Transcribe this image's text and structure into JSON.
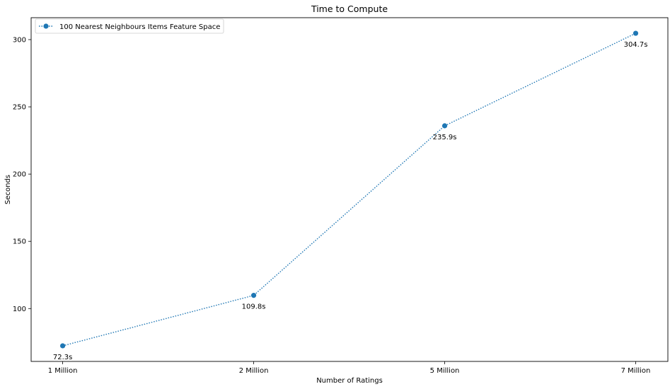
{
  "chart_data": {
    "type": "line",
    "title": "Time to Compute",
    "xlabel": "Number of Ratings",
    "ylabel": "Seconds",
    "categories": [
      "1 Million",
      "2 Million",
      "5 Million",
      "7 Million"
    ],
    "series": [
      {
        "name": "100 Nearest Neighbours Items Feature Space",
        "values": [
          72.3,
          109.8,
          235.9,
          304.7
        ],
        "data_labels": [
          "72.3s",
          "109.8s",
          "235.9s",
          "304.7s"
        ],
        "color": "#1f77b4",
        "line_style": "dotted",
        "marker": "circle"
      }
    ],
    "yticks": [
      100,
      150,
      200,
      250,
      300
    ],
    "ylim": [
      60.7,
      316.3
    ],
    "grid": false,
    "legend_position": "top-left"
  }
}
